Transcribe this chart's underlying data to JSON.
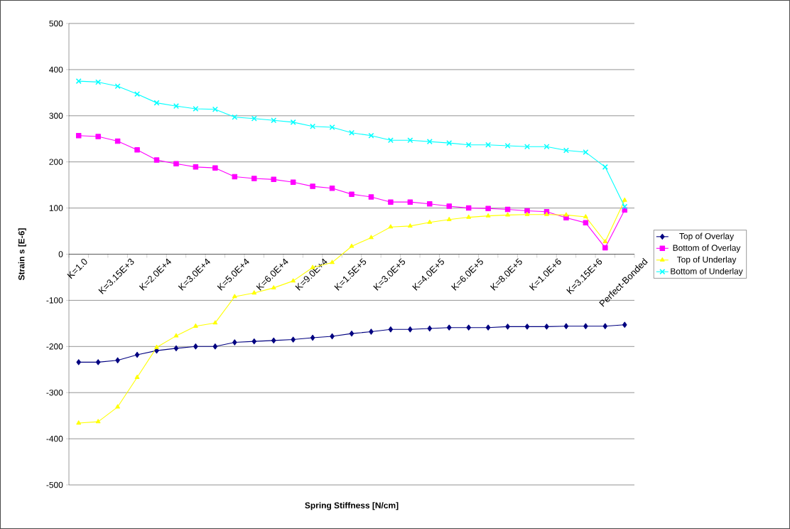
{
  "chart_data": {
    "type": "line",
    "xlabel": "Spring Stiffness [N/cm]",
    "ylabel": "Strain s [E-6]",
    "categories": [
      "K=1.0",
      null,
      "K=3.15E+3",
      null,
      "K=2.0E+4",
      null,
      "K=3.0E+4",
      null,
      "K=5.0E+4",
      null,
      "K=6.0E+4",
      null,
      "K=9.0E+4",
      null,
      "K=1.5E+5",
      null,
      "K=3.0E+5",
      null,
      "K=4.0E+5",
      null,
      "K=6.0E+5",
      null,
      "K=8.0E+5",
      null,
      "K=1.0E+6",
      null,
      "K=3.15E+6",
      null,
      "Perfect-Bonded"
    ],
    "series": [
      {
        "name": "Top of Overlay",
        "color": "#000080",
        "marker": "diamond",
        "values": [
          -234,
          -234,
          -230,
          -218,
          -209,
          -204,
          -200,
          -200,
          -191,
          -189,
          -187,
          -185,
          -181,
          -178,
          -172,
          -168,
          -163,
          -163,
          -161,
          -159,
          -159,
          -159,
          -157,
          -157,
          -157,
          -156,
          -156,
          -156,
          -153
        ]
      },
      {
        "name": "Bottom of Overlay",
        "color": "#ff00ff",
        "marker": "square",
        "values": [
          257,
          255,
          245,
          226,
          204,
          196,
          189,
          187,
          168,
          164,
          162,
          156,
          147,
          143,
          130,
          124,
          113,
          113,
          109,
          104,
          100,
          99,
          97,
          94,
          92,
          79,
          68,
          14,
          96
        ]
      },
      {
        "name": "Top of Underlay",
        "color": "#ffff00",
        "marker": "triangle",
        "values": [
          -366,
          -363,
          -331,
          -267,
          -202,
          -177,
          -156,
          -149,
          -92,
          -84,
          -73,
          -58,
          -29,
          -18,
          17,
          36,
          59,
          61,
          69,
          75,
          80,
          83,
          85,
          86,
          86,
          85,
          81,
          27,
          117
        ]
      },
      {
        "name": "Bottom of Underlay",
        "color": "#00ffff",
        "marker": "cross",
        "values": [
          375,
          373,
          364,
          347,
          328,
          321,
          315,
          314,
          297,
          294,
          290,
          286,
          277,
          275,
          263,
          257,
          247,
          247,
          244,
          241,
          237,
          237,
          235,
          233,
          233,
          225,
          221,
          189,
          103
        ]
      }
    ],
    "ylim": [
      -500,
      500
    ],
    "yticks": [
      -500,
      -400,
      -300,
      -200,
      -100,
      0,
      100,
      200,
      300,
      400,
      500
    ],
    "grid": "y",
    "legend": "right",
    "line_style": "solid"
  }
}
